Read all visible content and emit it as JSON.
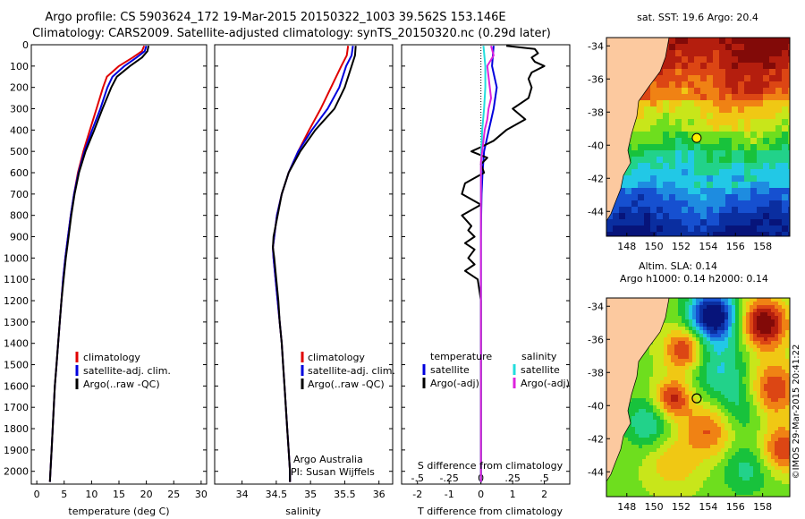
{
  "header": {
    "title_line1": "Argo profile: CS 5903624_172 19-Mar-2015 20150322_1003 39.562S 153.146E",
    "title_line2": "Climatology: CARS2009. Satellite-adjusted climatology: synTS_20150320.nc (0.29d later)"
  },
  "colors": {
    "climatology": "#e00000",
    "satellite": "#0000dd",
    "argo": "#000000",
    "sal_satellite": "#22dddd",
    "sal_argo": "#dd22dd"
  },
  "legend": {
    "climatology": "climatology",
    "satellite": "satellite-adj. clim.",
    "argo": "Argo(..raw -QC)",
    "diff_temp_head": "temperature",
    "diff_sal_head": "salinity",
    "diff_sat": "satellite",
    "diff_argo": "Argo(-adj)"
  },
  "credit": {
    "line1": "Argo Australia",
    "line2": "PI: Susan Wijffels"
  },
  "timestamp": "©IMOS 29-Mar-2015 20:41:22",
  "chart_data": [
    {
      "type": "line",
      "id": "temperature_profile",
      "xlabel": "temperature (deg C)",
      "ylabel": "",
      "xlim": [
        -1,
        31
      ],
      "ylim": [
        2060,
        0
      ],
      "xticks": [
        0,
        5,
        10,
        15,
        20,
        25,
        30
      ],
      "yticks": [
        0,
        100,
        200,
        300,
        400,
        500,
        600,
        700,
        800,
        900,
        1000,
        1100,
        1200,
        1300,
        1400,
        1500,
        1600,
        1700,
        1800,
        1900,
        2000
      ],
      "series": [
        {
          "name": "climatology",
          "depth": [
            5,
            30,
            60,
            100,
            150,
            200,
            300,
            400,
            500,
            600,
            700,
            800,
            900,
            1000,
            1100,
            1200,
            1300,
            1400,
            1500,
            1600,
            1700,
            1800,
            1900,
            2000,
            2050
          ],
          "values": [
            19.6,
            19.2,
            17.5,
            15,
            12.8,
            12.1,
            10.9,
            9.7,
            8.5,
            7.5,
            6.8,
            6.2,
            5.7,
            5.2,
            4.8,
            4.5,
            4.2,
            3.9,
            3.6,
            3.3,
            3.1,
            2.9,
            2.7,
            2.5,
            2.4
          ]
        },
        {
          "name": "satellite-adj. clim.",
          "depth": [
            5,
            30,
            60,
            100,
            150,
            200,
            300,
            400,
            500,
            600,
            700,
            800,
            900,
            1000,
            1100,
            1200,
            1300,
            1400,
            1500,
            1600,
            1700,
            1800,
            1900,
            2000,
            2050
          ],
          "values": [
            20.0,
            19.7,
            18.2,
            16,
            13.8,
            12.9,
            11.6,
            10.1,
            8.7,
            7.6,
            6.8,
            6.2,
            5.7,
            5.2,
            4.8,
            4.5,
            4.2,
            3.9,
            3.6,
            3.3,
            3.1,
            2.9,
            2.7,
            2.5,
            2.4
          ]
        },
        {
          "name": "Argo(..raw -QC)",
          "depth": [
            5,
            30,
            60,
            100,
            150,
            200,
            300,
            400,
            500,
            600,
            700,
            800,
            900,
            1000,
            1100,
            1200,
            1300,
            1400,
            1500,
            1600,
            1700,
            1800,
            1900,
            2000,
            2050
          ],
          "values": [
            20.4,
            20.2,
            19.2,
            17,
            14.6,
            13.6,
            12.0,
            10.5,
            8.9,
            7.7,
            6.9,
            6.3,
            5.8,
            5.3,
            4.9,
            4.5,
            4.2,
            3.9,
            3.6,
            3.3,
            3.1,
            2.9,
            2.7,
            2.5,
            2.4
          ]
        }
      ]
    },
    {
      "type": "line",
      "id": "salinity_profile",
      "xlabel": "salinity",
      "xlim": [
        33.6,
        36.2
      ],
      "ylim": [
        2060,
        0
      ],
      "xticks": [
        34,
        34.5,
        35,
        35.5,
        36
      ],
      "xtick_labels": [
        "34",
        "34.5",
        "35",
        "35.5",
        "36"
      ],
      "series": [
        {
          "name": "climatology",
          "depth": [
            5,
            50,
            100,
            200,
            300,
            400,
            500,
            600,
            700,
            800,
            900,
            950,
            1000,
            1100,
            1200,
            1300,
            1400,
            1500,
            1600,
            1700,
            1800,
            1900,
            2000,
            2050
          ],
          "values": [
            35.55,
            35.53,
            35.45,
            35.3,
            35.15,
            34.98,
            34.82,
            34.68,
            34.58,
            34.51,
            34.47,
            34.45,
            34.46,
            34.49,
            34.52,
            34.55,
            34.58,
            34.6,
            34.62,
            34.64,
            34.66,
            34.68,
            34.7,
            34.7
          ]
        },
        {
          "name": "satellite-adj. clim.",
          "depth": [
            5,
            50,
            100,
            200,
            300,
            400,
            500,
            600,
            700,
            800,
            900,
            950,
            1000,
            1100,
            1200,
            1300,
            1400,
            1500,
            1600,
            1700,
            1800,
            1900,
            2000,
            2050
          ],
          "values": [
            35.62,
            35.6,
            35.52,
            35.42,
            35.25,
            35.02,
            34.82,
            34.68,
            34.58,
            34.51,
            34.47,
            34.45,
            34.46,
            34.49,
            34.52,
            34.55,
            34.58,
            34.6,
            34.62,
            34.64,
            34.66,
            34.68,
            34.7,
            34.7
          ]
        },
        {
          "name": "Argo(..raw -QC)",
          "depth": [
            5,
            50,
            100,
            200,
            300,
            400,
            500,
            600,
            700,
            800,
            900,
            950,
            1000,
            1100,
            1200,
            1300,
            1400,
            1500,
            1600,
            1700,
            1800,
            1900,
            2000,
            2050
          ],
          "values": [
            35.66,
            35.65,
            35.6,
            35.5,
            35.35,
            35.07,
            34.85,
            34.68,
            34.58,
            34.52,
            34.46,
            34.45,
            34.47,
            34.5,
            34.53,
            34.55,
            34.58,
            34.6,
            34.62,
            34.64,
            34.66,
            34.68,
            34.7,
            34.7
          ]
        }
      ]
    },
    {
      "type": "line",
      "id": "difference_profile",
      "xlabel": "T difference from climatology",
      "xlabel_top": "S difference from climatology",
      "xlim": [
        -2.5,
        2.8
      ],
      "ylim": [
        2060,
        0
      ],
      "xticks": [
        -2,
        -1,
        0,
        1,
        2
      ],
      "xticks_s": [
        -0.5,
        -0.25,
        0,
        0.25,
        0.5
      ],
      "s_scale": 4,
      "zero_line": true,
      "series": [
        {
          "name": "temperature satellite",
          "depth": [
            5,
            100,
            200,
            300,
            400,
            500,
            600,
            700,
            800,
            900,
            1000,
            1100,
            1200,
            1500,
            2000,
            2050
          ],
          "values": [
            0.4,
            0.35,
            0.5,
            0.4,
            0.25,
            0.1,
            0.05,
            0.02,
            0.01,
            0.0,
            0.0,
            0.0,
            0.0,
            0.0,
            0.0,
            0.0
          ]
        },
        {
          "name": "temperature Argo(-adj)",
          "depth": [
            5,
            20,
            40,
            60,
            80,
            100,
            130,
            160,
            200,
            250,
            300,
            350,
            400,
            450,
            480,
            500,
            530,
            560,
            600,
            650,
            700,
            750,
            800,
            850,
            870,
            900,
            930,
            960,
            1000,
            1030,
            1060,
            1100,
            1200,
            1500,
            2000,
            2050
          ],
          "values": [
            0.8,
            1.7,
            1.8,
            1.6,
            1.7,
            2.0,
            1.6,
            1.5,
            1.6,
            1.5,
            1.0,
            1.4,
            0.8,
            0.4,
            0.0,
            -0.3,
            0.2,
            0.0,
            0.1,
            -0.5,
            -0.6,
            0.0,
            -0.6,
            -0.3,
            -0.4,
            -0.2,
            -0.5,
            -0.2,
            -0.4,
            -0.2,
            -0.5,
            -0.1,
            0.0,
            0.0,
            0.0,
            0.0
          ]
        },
        {
          "name": "salinity satellite",
          "depth": [
            5,
            100,
            200,
            300,
            400,
            500,
            600,
            700,
            800,
            900,
            1000,
            1100,
            1200,
            1500,
            2000,
            2050
          ],
          "values": [
            0.02,
            0.035,
            0.035,
            0.025,
            0.01,
            0.003,
            0.001,
            0.0,
            0.0,
            0.0,
            0.0,
            0.0,
            0.0,
            0.0,
            0.0,
            0.0
          ]
        },
        {
          "name": "salinity Argo(-adj)",
          "depth": [
            5,
            50,
            100,
            150,
            200,
            250,
            300,
            350,
            400,
            450,
            500,
            550,
            600,
            700,
            800,
            900,
            1000,
            1100,
            1200,
            1500,
            2000,
            2050
          ],
          "values": [
            0.08,
            0.1,
            0.05,
            0.06,
            0.07,
            0.08,
            0.06,
            0.05,
            0.03,
            0.02,
            0.01,
            0.0,
            0.0,
            0.0,
            0.0,
            0.0,
            0.0,
            0.0,
            0.0,
            0.0,
            0.0,
            0.0
          ]
        }
      ]
    },
    {
      "type": "heatmap",
      "id": "sst_map",
      "title": "sat. SST: 19.6 Argo: 20.4",
      "xlim": [
        146.5,
        160
      ],
      "ylim": [
        -45.5,
        -33.5
      ],
      "xticks": [
        148,
        150,
        152,
        154,
        156,
        158
      ],
      "yticks": [
        -34,
        -36,
        -38,
        -40,
        -42,
        -44
      ],
      "ytick_labels": [
        "-34",
        "-36",
        "-38",
        "-40",
        "-42",
        "-44"
      ],
      "argo_position": [
        153.146,
        -39.562
      ]
    },
    {
      "type": "heatmap",
      "id": "sla_map",
      "title": "Altim. SLA: 0.14",
      "subtitle": "Argo h1000: 0.14 h2000: 0.14",
      "xlim": [
        146.5,
        160
      ],
      "ylim": [
        -45.5,
        -33.5
      ],
      "xticks": [
        148,
        150,
        152,
        154,
        156,
        158
      ],
      "yticks": [
        -34,
        -36,
        -38,
        -40,
        -42,
        -44
      ],
      "ytick_labels": [
        "-34",
        "-36",
        "-38",
        "-40",
        "-42",
        "-44"
      ],
      "argo_position": [
        153.146,
        -39.562
      ]
    }
  ]
}
